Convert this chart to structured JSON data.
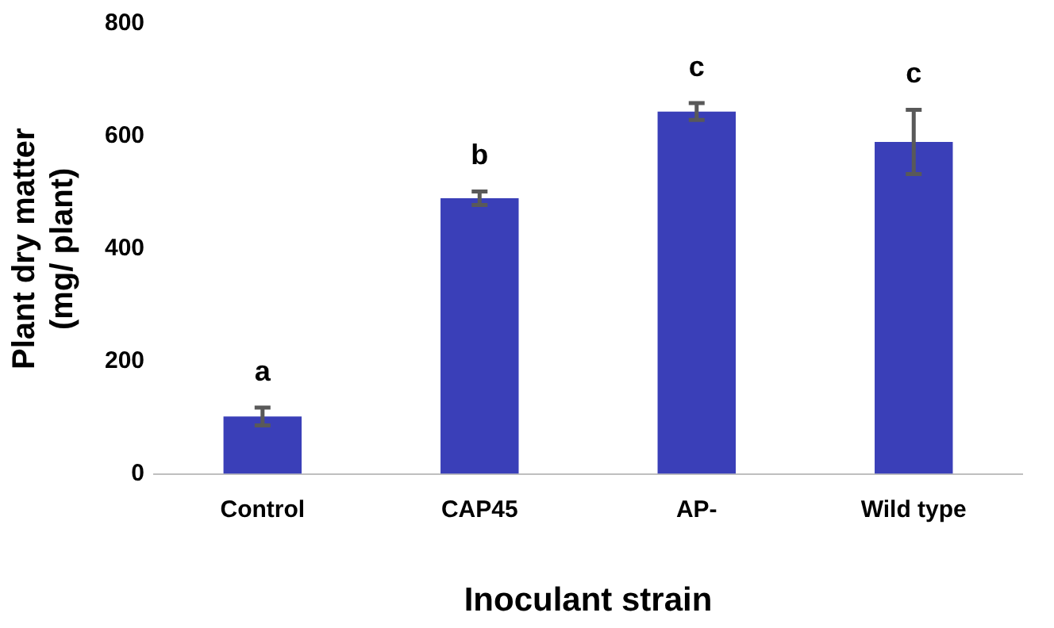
{
  "chart_data": {
    "type": "bar",
    "xlabel": "Inoculant strain",
    "ylabel": "Plant dry matter (mg/ plant)",
    "categories": [
      "Control",
      "CAP45",
      "AP-",
      "Wild type"
    ],
    "values": [
      102,
      490,
      644,
      590
    ],
    "errors": [
      16,
      12,
      15,
      57
    ],
    "color": "#3a3fb8",
    "ylim": [
      0,
      800
    ],
    "yticks": [
      0,
      200,
      400,
      600,
      800
    ],
    "grid": false,
    "annotations": [
      "a",
      "b",
      "c",
      "c"
    ]
  }
}
